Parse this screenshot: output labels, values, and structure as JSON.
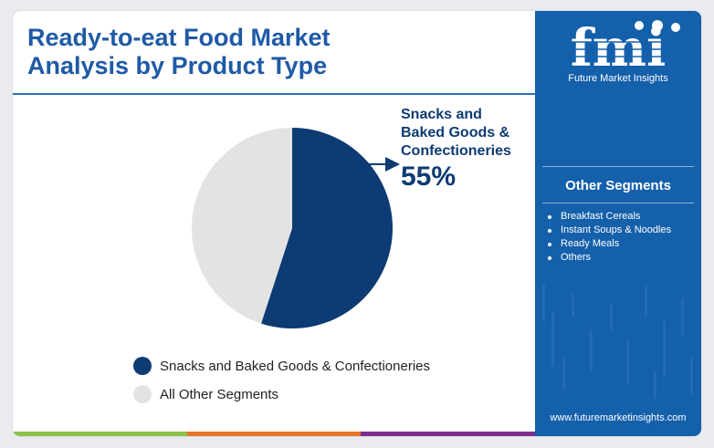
{
  "header": {
    "title_line1": "Ready-to-eat Food Market",
    "title_line2": "Analysis by Product Type"
  },
  "chart_data": {
    "type": "pie",
    "title": "Ready-to-eat Food Market Analysis by Product Type",
    "slices": [
      {
        "label": "Snacks and Baked Goods & Confectioneries",
        "value": 55,
        "color": "#0d3b73"
      },
      {
        "label": "All Other Segments",
        "value": 45,
        "color": "#e3e3e3"
      }
    ],
    "legend_placement": "bottom",
    "callout": {
      "label_line1": "Snacks and",
      "label_line2": "Baked Goods &",
      "label_line3": "Confectioneries",
      "value_text": "55%"
    }
  },
  "legend": {
    "items": [
      {
        "label": "Snacks and Baked Goods & Confectioneries",
        "color": "#0d3b73"
      },
      {
        "label": "All Other Segments",
        "color": "#e3e3e3"
      }
    ]
  },
  "sidebar": {
    "logo_text": "fmi",
    "logo_subtitle": "Future Market Insights",
    "heading": "Other Segments",
    "items": [
      "Breakfast Cereals",
      "Instant Soups & Noodles",
      "Ready Meals",
      "Others"
    ],
    "url": "www.futuremarketinsights.com",
    "background_color": "#1560ab"
  },
  "bottom_bar_colors": [
    "#8bc34a",
    "#e8732a",
    "#7b2d8e"
  ]
}
